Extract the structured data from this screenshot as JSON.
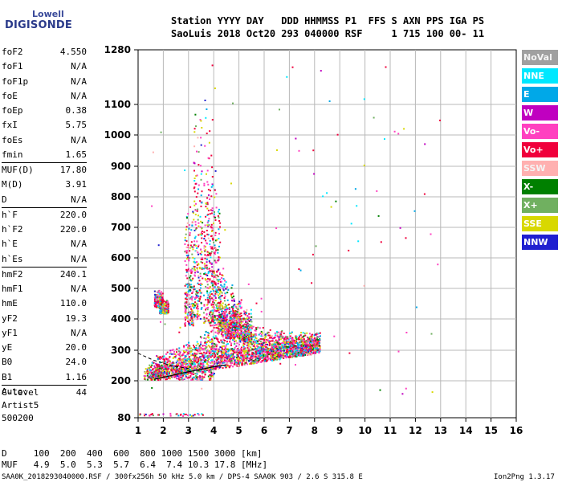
{
  "logo": {
    "line1": "Lowell",
    "line2": "DIGISONDE"
  },
  "header": {
    "line1": "Station YYYY DAY   DDD HHMMSS P1  FFS S AXN PPS IGA PS",
    "line2": "SaoLuis 2018 Oct20 293 040000 RSF     1 715 100 00- 11"
  },
  "params": [
    {
      "label": "foF2",
      "value": "4.550"
    },
    {
      "label": "foF1",
      "value": "N/A"
    },
    {
      "label": "foF1p",
      "value": "N/A"
    },
    {
      "label": "foE",
      "value": "N/A"
    },
    {
      "label": "foEp",
      "value": "0.38"
    },
    {
      "label": "fxI",
      "value": "5.75"
    },
    {
      "label": "foEs",
      "value": "N/A"
    },
    {
      "label": "fmin",
      "value": "1.65"
    },
    {
      "label": "MUF(D)",
      "value": "17.80",
      "sep": true
    },
    {
      "label": "M(D)",
      "value": "3.91"
    },
    {
      "label": "D",
      "value": "N/A"
    },
    {
      "label": "h`F",
      "value": "220.0",
      "sep": true
    },
    {
      "label": "h`F2",
      "value": "220.0"
    },
    {
      "label": "h`E",
      "value": "N/A"
    },
    {
      "label": "h`Es",
      "value": "N/A"
    },
    {
      "label": "hmF2",
      "value": "240.1",
      "sep": true
    },
    {
      "label": "hmF1",
      "value": "N/A"
    },
    {
      "label": "hmE",
      "value": "110.0"
    },
    {
      "label": "yF2",
      "value": "19.3"
    },
    {
      "label": "yF1",
      "value": "N/A"
    },
    {
      "label": "yE",
      "value": "20.0"
    },
    {
      "label": "B0",
      "value": "24.0"
    },
    {
      "label": "B1",
      "value": "1.16"
    },
    {
      "label": "C-level",
      "value": "44",
      "sep": true
    }
  ],
  "auto": {
    "line1": "Auto:",
    "line2": "Artist5",
    "line3": "500200"
  },
  "bottom_table": {
    "row1": "D     100  200  400  600  800 1000 1500 3000 [km]",
    "row2": "MUF   4.9  5.0  5.3  5.7  6.4  7.4 10.3 17.8 [MHz]"
  },
  "footer": {
    "left": "SAA0K_2018293040000.RSF / 300fx256h 50 kHz 5.0 km / DPS-4 SAA0K 903 / 2.6 S 315.8 E",
    "right": "Ion2Png 1.3.17"
  },
  "legend": [
    {
      "label": "NoVal",
      "color": "#a0a0a0"
    },
    {
      "label": "NNE",
      "color": "#00e8ff"
    },
    {
      "label": "E",
      "color": "#00a8e8"
    },
    {
      "label": "W",
      "color": "#c000c0"
    },
    {
      "label": "Vo-",
      "color": "#ff40c0"
    },
    {
      "label": "Vo+",
      "color": "#f0003c"
    },
    {
      "label": "SSW",
      "color": "#ffb0b0"
    },
    {
      "label": "X-",
      "color": "#008000"
    },
    {
      "label": "X+",
      "color": "#70b060"
    },
    {
      "label": "SSE",
      "color": "#d8d800"
    },
    {
      "label": "NNW",
      "color": "#2020d0"
    }
  ],
  "chart_data": {
    "type": "scatter",
    "xlabel": "",
    "ylabel": "",
    "xlim": [
      1,
      16
    ],
    "ylim": [
      80,
      1280
    ],
    "x_ticks": [
      1,
      2,
      3,
      4,
      5,
      6,
      7,
      8,
      9,
      10,
      11,
      12,
      13,
      14,
      15,
      16
    ],
    "y_ticks": [
      80,
      200,
      300,
      400,
      500,
      600,
      700,
      800,
      900,
      1000,
      1100,
      1280
    ],
    "grid": true,
    "trace": {
      "x": [
        1.65,
        2.2,
        2.8,
        3.4,
        4.0,
        4.5
      ],
      "y": [
        205,
        215,
        226,
        236,
        246,
        252
      ]
    },
    "trace_dashed": {
      "x": [
        1.0,
        1.6,
        2.3,
        3.0
      ],
      "y": [
        290,
        268,
        250,
        240
      ]
    }
  }
}
